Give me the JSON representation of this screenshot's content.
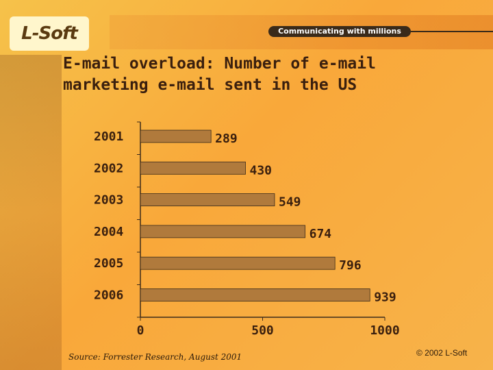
{
  "brand": {
    "logo_text": "L-Soft",
    "tagline": "Communicating with millions"
  },
  "slide": {
    "title_line1": "E-mail overload: Number of e-mail",
    "title_line2": "marketing e-mail sent in the US"
  },
  "chart_data": {
    "type": "bar",
    "orientation": "horizontal",
    "categories": [
      "2001",
      "2002",
      "2003",
      "2004",
      "2005",
      "2006"
    ],
    "values": [
      289,
      430,
      549,
      674,
      796,
      939
    ],
    "xlim": [
      0,
      1000
    ],
    "xticks": [
      "0",
      "500",
      "1000"
    ],
    "title": "",
    "xlabel": "",
    "ylabel": "",
    "grid": false,
    "bar_color": "#b07a3c",
    "bar_outline": "#3a2a1a"
  },
  "footer": {
    "source": "Source: Forrester Research, August 2001",
    "copyright": "© 2002 L-Soft"
  }
}
